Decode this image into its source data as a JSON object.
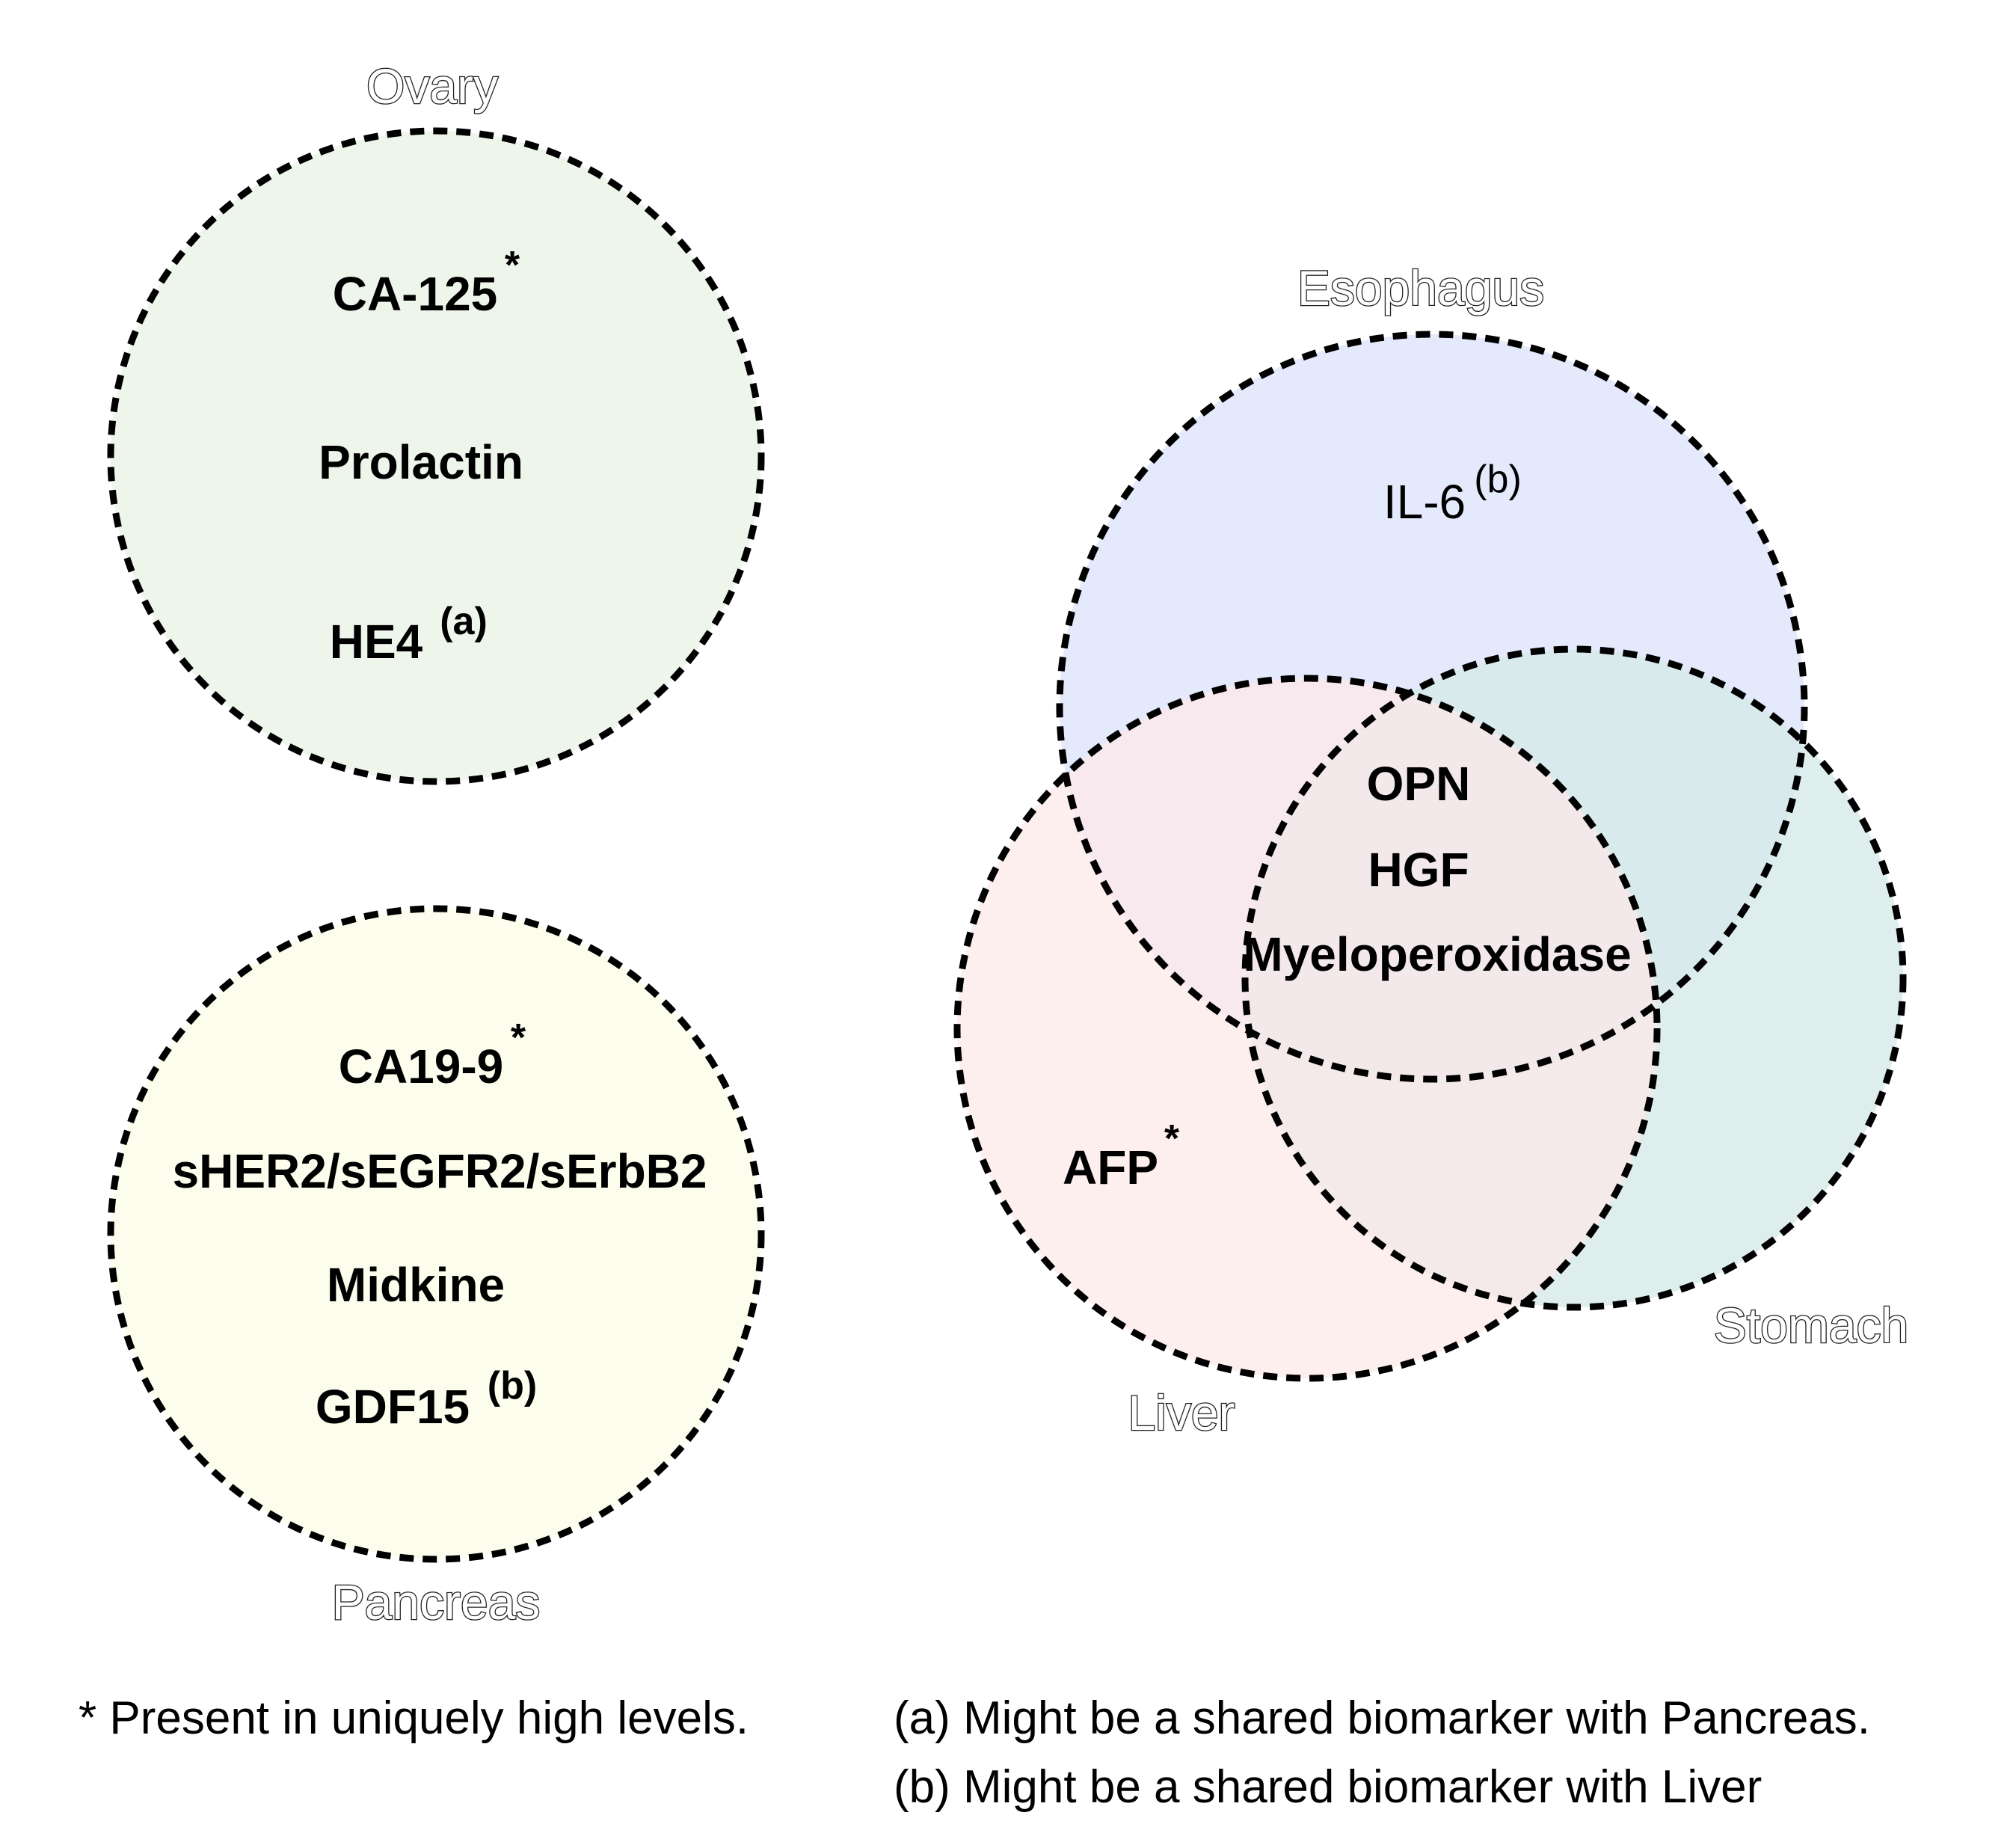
{
  "colors": {
    "ovary": "#eef5ea",
    "pancreas": "#fcfdec",
    "esophagus": "#e4e9fb",
    "liver": "#fde9e9",
    "stomach": "#d6eae9",
    "outline": "#000000"
  },
  "ovary": {
    "name": "Ovary",
    "markers": [
      "CA-125",
      "Prolactin",
      "HE4"
    ],
    "marks": [
      "*",
      "",
      "(a)"
    ]
  },
  "pancreas": {
    "name": "Pancreas",
    "markers": [
      "CA19-9",
      "sHER2/sEGFR2/sErbB2",
      "Midkine",
      "GDF15"
    ],
    "marks": [
      "*",
      "",
      "",
      "(b)"
    ]
  },
  "esophagus": {
    "name": "Esophagus",
    "marker": "IL-6",
    "mark": "(b)"
  },
  "liver": {
    "name": "Liver",
    "marker": "AFP",
    "mark": "*"
  },
  "stomach": {
    "name": "Stomach"
  },
  "shared": {
    "markers": [
      "OPN",
      "HGF",
      "Myeloperoxidase"
    ]
  },
  "notes": {
    "star": "* Present in uniquely high levels.",
    "a": "(a) Might be a shared biomarker with Pancreas.",
    "b": "(b) Might be a shared biomarker with Liver"
  }
}
